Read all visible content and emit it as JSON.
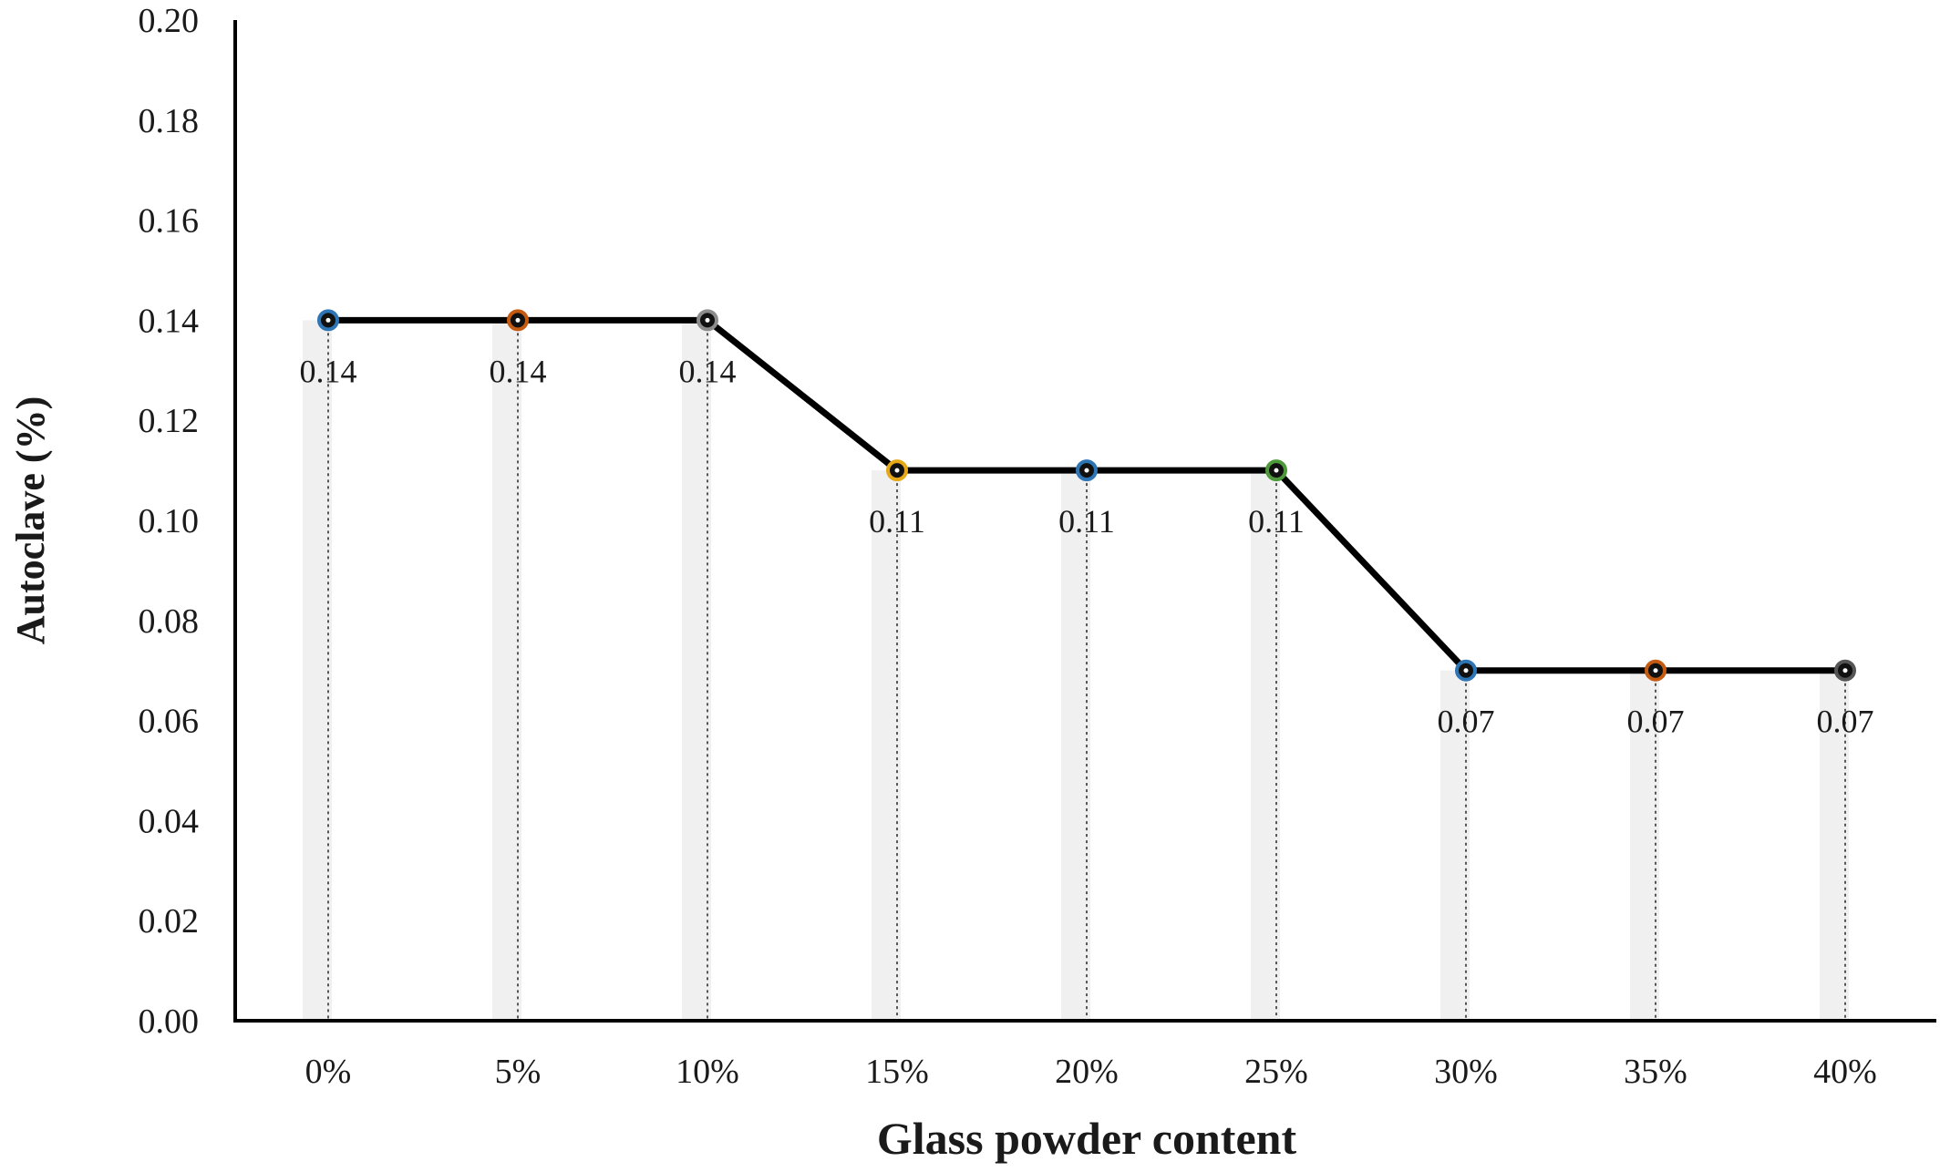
{
  "chart_data": {
    "type": "line",
    "title": "",
    "xlabel": "Glass powder content",
    "ylabel": "Autoclave (%)",
    "categories": [
      "0%",
      "5%",
      "10%",
      "15%",
      "20%",
      "25%",
      "30%",
      "35%",
      "40%"
    ],
    "values": [
      0.14,
      0.14,
      0.14,
      0.11,
      0.11,
      0.11,
      0.07,
      0.07,
      0.07
    ],
    "data_labels": [
      "0.14",
      "0.14",
      "0.14",
      "0.11",
      "0.11",
      "0.11",
      "0.07",
      "0.07",
      "0.07"
    ],
    "ylim": [
      0,
      0.2
    ],
    "yticks": [
      "0.00",
      "0.02",
      "0.04",
      "0.06",
      "0.08",
      "0.10",
      "0.12",
      "0.14",
      "0.16",
      "0.18",
      "0.20"
    ],
    "grid": false,
    "legend": "none",
    "line_color": "#000000",
    "marker_colors": [
      "#2e75b6",
      "#c55a11",
      "#8c8c8c",
      "#e6a817",
      "#2e75b6",
      "#4e9a3a",
      "#2e75b6",
      "#c55a11",
      "#555555"
    ]
  }
}
